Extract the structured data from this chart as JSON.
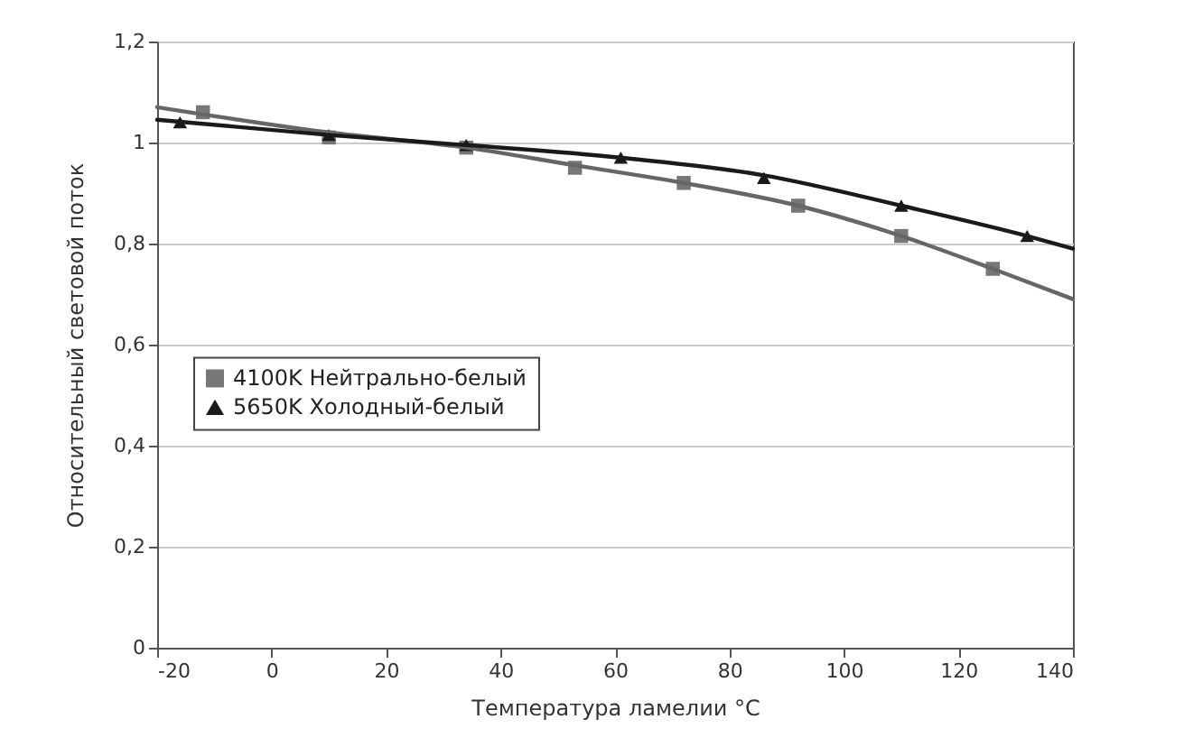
{
  "chart_data": {
    "type": "line",
    "xlabel": "Температура ламелии °C",
    "ylabel": "Относительный световой поток",
    "xlim": [
      -20,
      140
    ],
    "xticks": [
      -20,
      0,
      20,
      40,
      60,
      80,
      100,
      120,
      140
    ],
    "ylim": [
      0,
      1.2
    ],
    "yticks": [
      0,
      {
        "value": 0.2,
        "label": "0,2"
      },
      {
        "value": 0.4,
        "label": "0,4"
      },
      {
        "value": 0.6,
        "label": "0,6"
      },
      {
        "value": 0.8,
        "label": "0,8"
      },
      1,
      {
        "value": 1.2,
        "label": "1,2"
      }
    ],
    "grid": "y",
    "legend": "left",
    "series": [
      {
        "name": "4100K Нейтрально-белый",
        "type": "scatter",
        "marker": "square",
        "color": "#777777",
        "x": [
          -12,
          10,
          34,
          53,
          72,
          92,
          110,
          126
        ],
        "values": [
          1.06,
          1.01,
          0.99,
          0.95,
          0.92,
          0.875,
          0.815,
          0.75
        ]
      },
      {
        "name": "5650K Холодный-белый",
        "type": "scatter",
        "marker": "triangle",
        "color": "#1a1a1a",
        "x": [
          -16,
          10,
          34,
          61,
          86,
          110,
          132
        ],
        "values": [
          1.04,
          1.015,
          0.995,
          0.97,
          0.93,
          0.875,
          0.815
        ]
      },
      {
        "marker": "none",
        "color": "#666666",
        "x": [
          -20,
          10,
          34,
          53,
          72,
          92,
          110,
          126,
          140
        ],
        "values": [
          1.07,
          1.02,
          0.99,
          0.955,
          0.92,
          0.875,
          0.815,
          0.75,
          0.69
        ]
      },
      {
        "marker": "none",
        "color": "#1a1a1a",
        "x": [
          -20,
          10,
          34,
          61,
          86,
          110,
          132,
          140
        ],
        "values": [
          1.045,
          1.015,
          0.995,
          0.97,
          0.935,
          0.875,
          0.815,
          0.79
        ]
      }
    ]
  }
}
